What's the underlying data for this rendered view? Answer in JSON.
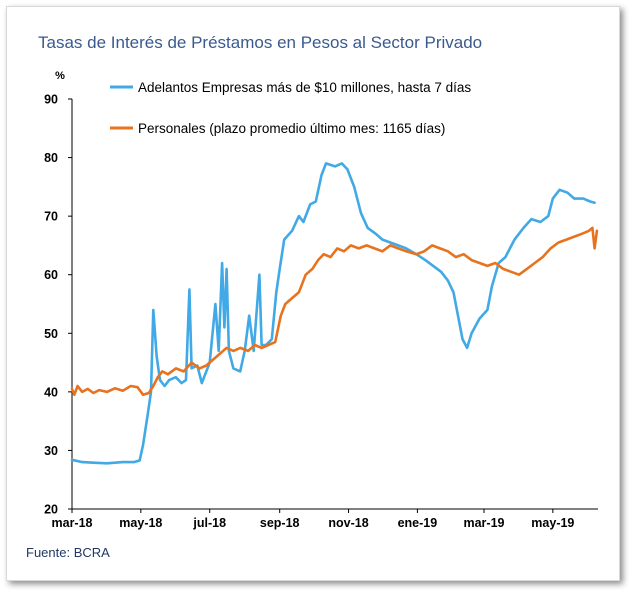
{
  "title": "Tasas de Interés de Préstamos en Pesos al Sector Privado",
  "source": "Fuente: BCRA",
  "chart_data": {
    "type": "line",
    "unit_label": "%",
    "ylim": [
      20,
      90
    ],
    "yticks": [
      20,
      30,
      40,
      50,
      60,
      70,
      80,
      90
    ],
    "x_tick_labels": [
      "mar-18",
      "may-18",
      "jul-18",
      "sep-18",
      "nov-18",
      "ene-19",
      "mar-19",
      "may-19"
    ],
    "x_range": [
      "2018-03-01",
      "2019-06-10"
    ],
    "grid": false,
    "legend_position": "top-left",
    "series": [
      {
        "name": "Adelantos Empresas más de $10 millones, hasta 7 días",
        "color": "#41a9e6",
        "points": [
          [
            "2018-03-01",
            28.4
          ],
          [
            "2018-03-10",
            28.0
          ],
          [
            "2018-03-20",
            27.9
          ],
          [
            "2018-04-01",
            27.8
          ],
          [
            "2018-04-15",
            28.0
          ],
          [
            "2018-04-25",
            28.0
          ],
          [
            "2018-04-30",
            28.3
          ],
          [
            "2018-05-03",
            31.0
          ],
          [
            "2018-05-07",
            36.0
          ],
          [
            "2018-05-10",
            40.0
          ],
          [
            "2018-05-12",
            54.0
          ],
          [
            "2018-05-15",
            46.0
          ],
          [
            "2018-05-18",
            42.0
          ],
          [
            "2018-05-22",
            41.0
          ],
          [
            "2018-05-26",
            42.0
          ],
          [
            "2018-06-01",
            42.5
          ],
          [
            "2018-06-06",
            41.5
          ],
          [
            "2018-06-10",
            42.0
          ],
          [
            "2018-06-13",
            57.5
          ],
          [
            "2018-06-15",
            44.0
          ],
          [
            "2018-06-20",
            44.5
          ],
          [
            "2018-06-24",
            41.5
          ],
          [
            "2018-07-01",
            45.0
          ],
          [
            "2018-07-06",
            55.0
          ],
          [
            "2018-07-09",
            47.0
          ],
          [
            "2018-07-12",
            62.0
          ],
          [
            "2018-07-14",
            51.0
          ],
          [
            "2018-07-16",
            61.0
          ],
          [
            "2018-07-18",
            47.0
          ],
          [
            "2018-07-22",
            44.0
          ],
          [
            "2018-07-28",
            43.5
          ],
          [
            "2018-08-01",
            47.0
          ],
          [
            "2018-08-05",
            53.0
          ],
          [
            "2018-08-09",
            47.0
          ],
          [
            "2018-08-14",
            60.0
          ],
          [
            "2018-08-16",
            48.0
          ],
          [
            "2018-08-20",
            48.0
          ],
          [
            "2018-08-25",
            49.0
          ],
          [
            "2018-08-29",
            57.0
          ],
          [
            "2018-09-01",
            61.0
          ],
          [
            "2018-09-05",
            66.0
          ],
          [
            "2018-09-12",
            67.5
          ],
          [
            "2018-09-18",
            70.0
          ],
          [
            "2018-09-22",
            69.0
          ],
          [
            "2018-09-28",
            72.0
          ],
          [
            "2018-10-03",
            72.5
          ],
          [
            "2018-10-08",
            77.0
          ],
          [
            "2018-10-12",
            79.0
          ],
          [
            "2018-10-20",
            78.5
          ],
          [
            "2018-10-26",
            79.0
          ],
          [
            "2018-10-31",
            78.0
          ],
          [
            "2018-11-06",
            75.0
          ],
          [
            "2018-11-12",
            70.5
          ],
          [
            "2018-11-18",
            68.0
          ],
          [
            "2018-11-25",
            67.0
          ],
          [
            "2018-12-01",
            66.0
          ],
          [
            "2018-12-08",
            65.5
          ],
          [
            "2018-12-15",
            65.0
          ],
          [
            "2018-12-22",
            64.5
          ],
          [
            "2018-12-31",
            63.5
          ],
          [
            "2019-01-08",
            62.5
          ],
          [
            "2019-01-15",
            61.5
          ],
          [
            "2019-01-22",
            60.5
          ],
          [
            "2019-01-28",
            59.0
          ],
          [
            "2019-02-02",
            57.0
          ],
          [
            "2019-02-06",
            53.0
          ],
          [
            "2019-02-10",
            49.0
          ],
          [
            "2019-02-14",
            47.5
          ],
          [
            "2019-02-18",
            50.0
          ],
          [
            "2019-02-25",
            52.5
          ],
          [
            "2019-03-04",
            54.0
          ],
          [
            "2019-03-08",
            58.0
          ],
          [
            "2019-03-14",
            62.0
          ],
          [
            "2019-03-20",
            63.0
          ],
          [
            "2019-03-28",
            66.0
          ],
          [
            "2019-04-05",
            68.0
          ],
          [
            "2019-04-12",
            69.5
          ],
          [
            "2019-04-20",
            69.0
          ],
          [
            "2019-04-27",
            70.0
          ],
          [
            "2019-05-01",
            73.0
          ],
          [
            "2019-05-07",
            74.5
          ],
          [
            "2019-05-14",
            74.0
          ],
          [
            "2019-05-20",
            73.0
          ],
          [
            "2019-05-28",
            73.0
          ],
          [
            "2019-06-03",
            72.5
          ],
          [
            "2019-06-07",
            72.3
          ]
        ]
      },
      {
        "name": "Personales (plazo promedio último mes: 1165 días)",
        "color": "#e8731e",
        "points": [
          [
            "2018-03-01",
            40.5
          ],
          [
            "2018-03-03",
            39.5
          ],
          [
            "2018-03-06",
            41.0
          ],
          [
            "2018-03-10",
            40.0
          ],
          [
            "2018-03-15",
            40.5
          ],
          [
            "2018-03-20",
            39.8
          ],
          [
            "2018-03-25",
            40.3
          ],
          [
            "2018-04-01",
            40.0
          ],
          [
            "2018-04-08",
            40.6
          ],
          [
            "2018-04-15",
            40.2
          ],
          [
            "2018-04-22",
            41.0
          ],
          [
            "2018-04-28",
            40.8
          ],
          [
            "2018-05-03",
            39.5
          ],
          [
            "2018-05-08",
            39.8
          ],
          [
            "2018-05-12",
            41.0
          ],
          [
            "2018-05-16",
            42.5
          ],
          [
            "2018-05-20",
            43.5
          ],
          [
            "2018-05-25",
            43.0
          ],
          [
            "2018-06-01",
            44.0
          ],
          [
            "2018-06-08",
            43.5
          ],
          [
            "2018-06-15",
            45.0
          ],
          [
            "2018-06-22",
            44.0
          ],
          [
            "2018-06-28",
            44.5
          ],
          [
            "2018-07-04",
            45.5
          ],
          [
            "2018-07-10",
            46.5
          ],
          [
            "2018-07-16",
            47.5
          ],
          [
            "2018-07-22",
            47.0
          ],
          [
            "2018-07-28",
            47.5
          ],
          [
            "2018-08-04",
            47.0
          ],
          [
            "2018-08-10",
            48.0
          ],
          [
            "2018-08-16",
            47.5
          ],
          [
            "2018-08-22",
            48.0
          ],
          [
            "2018-08-28",
            48.5
          ],
          [
            "2018-09-02",
            53.0
          ],
          [
            "2018-09-06",
            55.0
          ],
          [
            "2018-09-12",
            56.0
          ],
          [
            "2018-09-18",
            57.0
          ],
          [
            "2018-09-24",
            60.0
          ],
          [
            "2018-09-30",
            61.0
          ],
          [
            "2018-10-05",
            62.5
          ],
          [
            "2018-10-10",
            63.5
          ],
          [
            "2018-10-16",
            63.0
          ],
          [
            "2018-10-22",
            64.5
          ],
          [
            "2018-10-28",
            64.0
          ],
          [
            "2018-11-03",
            65.0
          ],
          [
            "2018-11-10",
            64.5
          ],
          [
            "2018-11-17",
            65.0
          ],
          [
            "2018-11-24",
            64.5
          ],
          [
            "2018-12-01",
            64.0
          ],
          [
            "2018-12-08",
            65.0
          ],
          [
            "2018-12-15",
            64.5
          ],
          [
            "2018-12-22",
            64.0
          ],
          [
            "2018-12-31",
            63.5
          ],
          [
            "2019-01-07",
            64.0
          ],
          [
            "2019-01-14",
            65.0
          ],
          [
            "2019-01-21",
            64.5
          ],
          [
            "2019-01-28",
            64.0
          ],
          [
            "2019-02-04",
            63.0
          ],
          [
            "2019-02-11",
            63.5
          ],
          [
            "2019-02-18",
            62.5
          ],
          [
            "2019-02-25",
            62.0
          ],
          [
            "2019-03-04",
            61.5
          ],
          [
            "2019-03-11",
            62.0
          ],
          [
            "2019-03-18",
            61.0
          ],
          [
            "2019-03-25",
            60.5
          ],
          [
            "2019-04-01",
            60.0
          ],
          [
            "2019-04-08",
            61.0
          ],
          [
            "2019-04-15",
            62.0
          ],
          [
            "2019-04-22",
            63.0
          ],
          [
            "2019-04-29",
            64.5
          ],
          [
            "2019-05-06",
            65.5
          ],
          [
            "2019-05-13",
            66.0
          ],
          [
            "2019-05-20",
            66.5
          ],
          [
            "2019-05-27",
            67.0
          ],
          [
            "2019-06-02",
            67.5
          ],
          [
            "2019-06-05",
            68.0
          ],
          [
            "2019-06-07",
            64.5
          ],
          [
            "2019-06-09",
            67.5
          ]
        ]
      }
    ]
  }
}
